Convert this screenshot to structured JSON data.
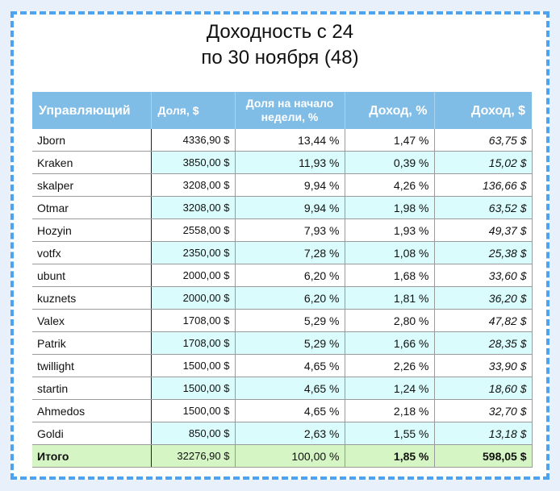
{
  "title": {
    "line1": "Доходность с 24",
    "line2": "по 30 ноября (48)"
  },
  "table": {
    "headers": {
      "manager": "Управляющий",
      "share": "Доля, $",
      "share_pct": "Доля на начало недели, %",
      "income_pct": "Доход, %",
      "income_usd": "Доход, $"
    },
    "rows": [
      {
        "name": "Jborn",
        "share": "4336,90 $",
        "share_pct": "13,44 %",
        "income_pct": "1,47 %",
        "income_usd": "63,75 $"
      },
      {
        "name": "Kraken",
        "share": "3850,00 $",
        "share_pct": "11,93 %",
        "income_pct": "0,39 %",
        "income_usd": "15,02 $"
      },
      {
        "name": "skalper",
        "share": "3208,00 $",
        "share_pct": "9,94 %",
        "income_pct": "4,26 %",
        "income_usd": "136,66 $"
      },
      {
        "name": "Otmar",
        "share": "3208,00 $",
        "share_pct": "9,94 %",
        "income_pct": "1,98 %",
        "income_usd": "63,52 $"
      },
      {
        "name": "Hozyin",
        "share": "2558,00 $",
        "share_pct": "7,93 %",
        "income_pct": "1,93 %",
        "income_usd": "49,37 $"
      },
      {
        "name": "votfx",
        "share": "2350,00 $",
        "share_pct": "7,28 %",
        "income_pct": "1,08 %",
        "income_usd": "25,38 $"
      },
      {
        "name": "ubunt",
        "share": "2000,00 $",
        "share_pct": "6,20 %",
        "income_pct": "1,68 %",
        "income_usd": "33,60 $"
      },
      {
        "name": "kuznets",
        "share": "2000,00 $",
        "share_pct": "6,20 %",
        "income_pct": "1,81 %",
        "income_usd": "36,20 $"
      },
      {
        "name": "Valex",
        "share": "1708,00 $",
        "share_pct": "5,29 %",
        "income_pct": "2,80 %",
        "income_usd": "47,82 $"
      },
      {
        "name": "Patrik",
        "share": "1708,00 $",
        "share_pct": "5,29 %",
        "income_pct": "1,66 %",
        "income_usd": "28,35 $"
      },
      {
        "name": "twillight",
        "share": "1500,00 $",
        "share_pct": "4,65 %",
        "income_pct": "2,26 %",
        "income_usd": "33,90 $"
      },
      {
        "name": "startin",
        "share": "1500,00 $",
        "share_pct": "4,65 %",
        "income_pct": "1,24 %",
        "income_usd": "18,60 $"
      },
      {
        "name": "Ahmedos",
        "share": "1500,00 $",
        "share_pct": "4,65 %",
        "income_pct": "2,18 %",
        "income_usd": "32,70 $"
      },
      {
        "name": "Goldi",
        "share": "850,00 $",
        "share_pct": "2,63 %",
        "income_pct": "1,55 %",
        "income_usd": "13,18 $"
      }
    ],
    "total": {
      "name": "Итого",
      "share": "32276,90 $",
      "share_pct": "100,00 %",
      "income_pct": "1,85 %",
      "income_usd": "598,05 $"
    }
  },
  "colors": {
    "header_bg": "#7fbde7",
    "alt_row_bg": "#dafcfd",
    "total_bg": "#d6f5c4",
    "frame_border": "#4da3ef"
  }
}
